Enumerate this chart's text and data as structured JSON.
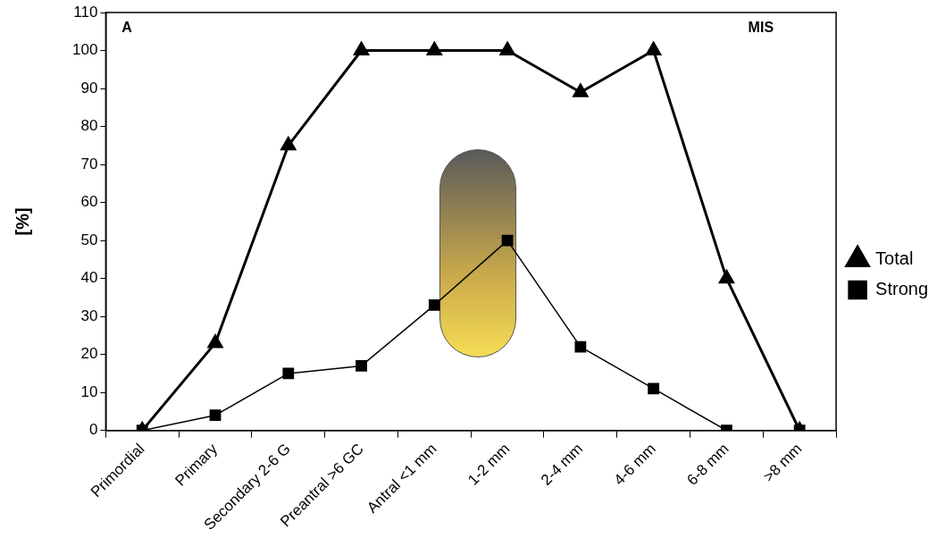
{
  "chart_data": {
    "type": "line",
    "ylabel": "[%]",
    "annotations": [
      "A",
      "MIS"
    ],
    "categories": [
      "Primordial",
      "Primary",
      "Secondary 2-6 G",
      "Preantral >6 GC",
      "Antral <1 mm",
      "1-2 mm",
      "2-4 mm",
      "4-6 mm",
      "6-8 mm",
      ">8 mm"
    ],
    "series": [
      {
        "name": "Total",
        "color": "#000000",
        "marker": "triangle",
        "values": [
          0,
          23,
          75,
          100,
          100,
          100,
          89,
          100,
          40,
          0
        ]
      },
      {
        "name": "Strong",
        "color": "#000000",
        "marker": "square",
        "values": [
          0,
          4,
          15,
          17,
          33,
          50,
          22,
          11,
          0,
          0
        ]
      }
    ],
    "ylim": [
      0,
      110
    ],
    "yticks": [
      0,
      10,
      20,
      30,
      40,
      50,
      60,
      70,
      80,
      90,
      100,
      110
    ],
    "grid": false,
    "legend": "right",
    "line_style": "solid"
  }
}
